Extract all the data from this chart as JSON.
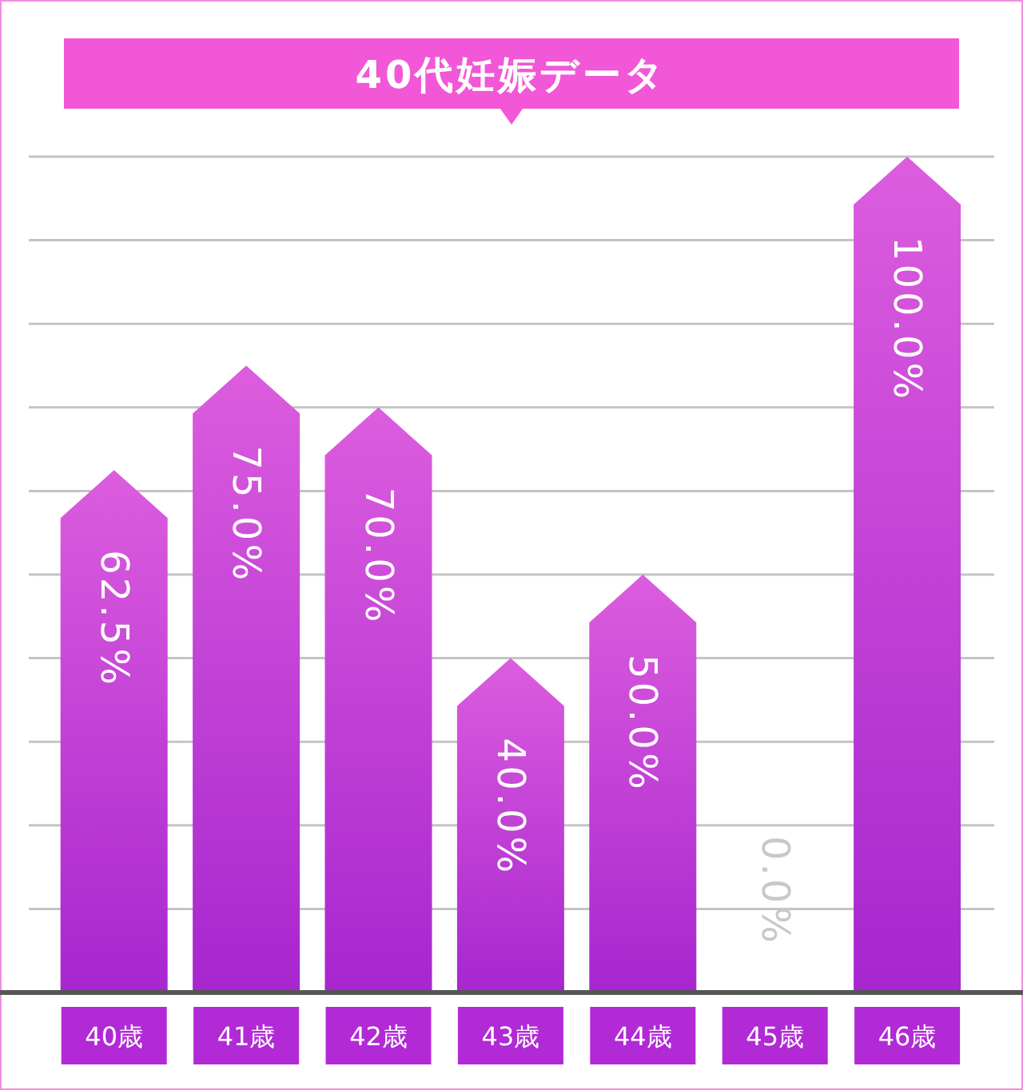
{
  "chart_data": {
    "type": "bar",
    "title": "40代妊娠データ",
    "categories": [
      "40歳",
      "41歳",
      "42歳",
      "43歳",
      "44歳",
      "45歳",
      "46歳"
    ],
    "values": [
      62.5,
      75,
      70,
      40,
      50,
      0,
      100
    ],
    "value_labels": [
      "62.5%",
      "75.0%",
      "70.0%",
      "40.0%",
      "50.0%",
      "0.0%",
      "100.0%"
    ],
    "color": "#d640d8",
    "ylim": [
      0,
      100
    ],
    "yticks": [
      {
        "value": 0,
        "label": null
      },
      {
        "value": 10,
        "label": null
      },
      {
        "value": 20,
        "label": null
      },
      {
        "value": 30,
        "label": null
      },
      {
        "value": 40,
        "label": null
      },
      {
        "value": 50,
        "label": null
      },
      {
        "value": 60,
        "label": null
      },
      {
        "value": 70,
        "label": null
      },
      {
        "value": 80,
        "label": null
      },
      {
        "value": 90,
        "label": null
      },
      {
        "value": 100,
        "label": null
      }
    ],
    "grid": "y",
    "tick_labels": "x"
  }
}
